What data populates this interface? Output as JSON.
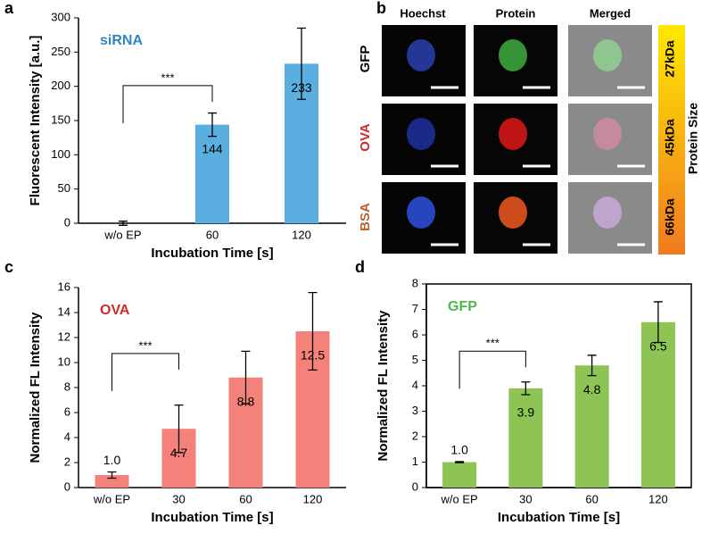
{
  "chart_data": [
    {
      "type": "bar",
      "panel": "a",
      "label": "siRNA",
      "label_color": "#2f86c6",
      "ylabel": "Fluorescent Intensity [a.u.]",
      "xlabel": "Incubation Time [s]",
      "categories": [
        "w/o EP",
        "60",
        "120"
      ],
      "values": [
        0,
        144,
        233
      ],
      "errors": [
        3,
        17,
        52
      ],
      "value_labels": [
        null,
        "144",
        "233"
      ],
      "color": "#5aafe0",
      "ylim": [
        0,
        300
      ],
      "yticks": [
        0,
        50,
        100,
        150,
        200,
        250,
        300
      ],
      "annotation": "***",
      "frame": false
    },
    {
      "type": "bar",
      "panel": "c",
      "label": "OVA",
      "label_color": "#d02a2a",
      "ylabel": "Normalized FL Intensity",
      "xlabel": "Incubation Time [s]",
      "categories": [
        "w/o EP",
        "30",
        "60",
        "120"
      ],
      "values": [
        1.0,
        4.7,
        8.8,
        12.5
      ],
      "errors": [
        0.25,
        1.9,
        2.1,
        3.1
      ],
      "value_labels": [
        "1.0",
        "4.7",
        "8.8",
        "12.5"
      ],
      "color": "#f4817a",
      "ylim": [
        0,
        16
      ],
      "yticks": [
        0,
        2,
        4,
        6,
        8,
        10,
        12,
        14,
        16
      ],
      "annotation": "***",
      "frame": false
    },
    {
      "type": "bar",
      "panel": "d",
      "label": "GFP",
      "label_color": "#4cb84c",
      "ylabel": "Normalized FL Intensity",
      "xlabel": "Incubation Time [s]",
      "categories": [
        "w/o EP",
        "30",
        "60",
        "120"
      ],
      "values": [
        1.0,
        3.9,
        4.8,
        6.5
      ],
      "errors": [
        0.02,
        0.25,
        0.4,
        0.8
      ],
      "value_labels": [
        "1.0",
        "3.9",
        "4.8",
        "6.5"
      ],
      "color": "#8dc454",
      "ylim": [
        0,
        8
      ],
      "yticks": [
        0,
        1,
        2,
        3,
        4,
        5,
        6,
        7,
        8
      ],
      "annotation": "***",
      "frame": true
    }
  ],
  "image_panel": {
    "panel": "b",
    "columns": [
      "Hoechst",
      "Protein",
      "Merged"
    ],
    "rows": [
      "GFP",
      "OVA",
      "BSA"
    ],
    "sizes": [
      "27kDa",
      "45kDa",
      "66kDa"
    ],
    "size_label": "Protein Size"
  }
}
